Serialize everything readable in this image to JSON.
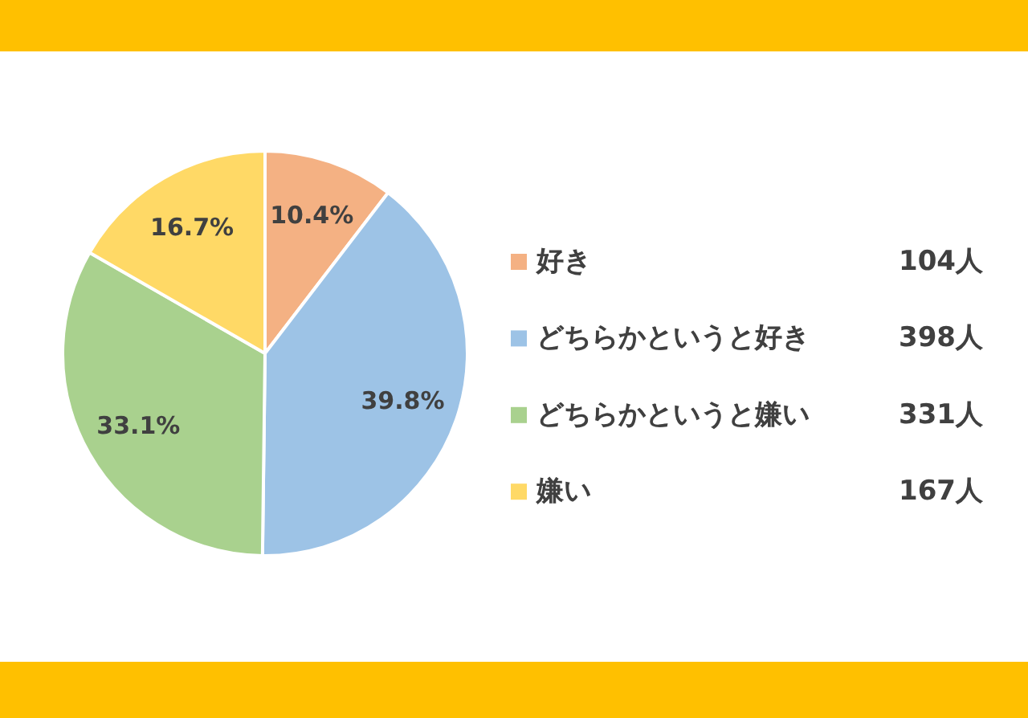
{
  "chart_data": {
    "type": "pie",
    "categories": [
      "好き",
      "どちらかというと好き",
      "どちらかというと嫌い",
      "嫌い"
    ],
    "values": [
      10.4,
      39.8,
      33.1,
      16.7
    ],
    "colors": [
      "#f4b183",
      "#9dc3e6",
      "#a9d18e",
      "#ffd966"
    ],
    "value_labels": [
      "10.4%",
      "39.8%",
      "33.1%",
      "16.7%"
    ],
    "annotations": [
      "104人",
      "398人",
      "331人",
      "167人"
    ],
    "legend": "right"
  }
}
